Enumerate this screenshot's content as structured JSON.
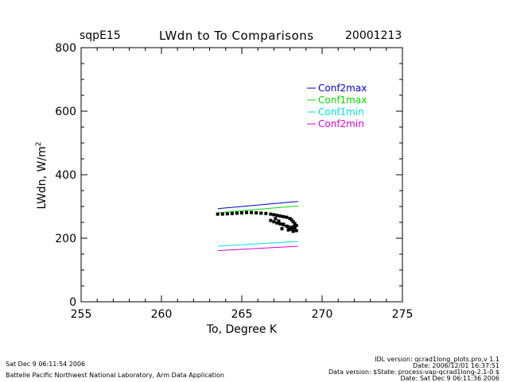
{
  "header": {
    "site": "sqpE15",
    "title": "LWdn to To Comparisons",
    "date": "20001213"
  },
  "footer": {
    "timestamp": "Sat Dec  9 06:11:54 2006",
    "lab": "Battelle Pacific Northwest National Laboratory, Arm Data Application",
    "idl_version": "IDL version: qcrad1long_plots.pro,v 1.1",
    "file_date": "Date: 2006/12/01 16:37:51",
    "data_version": "Data version: $State: process-vap-qcrad1long-2.1-0 $",
    "run_date": "Date: Sat Dec  9 06:11:36 2006"
  },
  "chart_data": {
    "type": "scatter",
    "title": "LWdn to To Comparisons",
    "xlabel": "To, Degree K",
    "ylabel": "LWdn, W/m",
    "ylabel_sup": "2",
    "xlim": [
      255,
      275
    ],
    "ylim": [
      0,
      800
    ],
    "xticks": [
      "255",
      "260",
      "265",
      "270",
      "275"
    ],
    "yticks": [
      "0",
      "200",
      "400",
      "600",
      "800"
    ],
    "legend_position": "top-right",
    "lines": [
      {
        "name": "Conf2max",
        "color": "#0000cc",
        "x": [
          263.5,
          268.5
        ],
        "y": [
          293,
          316
        ]
      },
      {
        "name": "Conf1max",
        "color": "#00dd00",
        "x": [
          263.5,
          268.5
        ],
        "y": [
          280,
          302
        ]
      },
      {
        "name": "Conf1min",
        "color": "#00dddd",
        "x": [
          263.5,
          268.5
        ],
        "y": [
          175,
          190
        ]
      },
      {
        "name": "Conf2min",
        "color": "#dd00dd",
        "x": [
          263.5,
          268.5
        ],
        "y": [
          161,
          175
        ]
      }
    ],
    "points": {
      "color": "#000000",
      "x": [
        263.5,
        263.8,
        264.1,
        264.4,
        264.7,
        265.0,
        265.3,
        265.6,
        265.9,
        266.2,
        266.5,
        266.8,
        267.0,
        267.2,
        267.4,
        267.6,
        267.8,
        268.0,
        268.1,
        268.2,
        268.3,
        268.4,
        268.2,
        268.0,
        267.8,
        267.6,
        267.4,
        267.2,
        267.0,
        266.8,
        267.5,
        267.9,
        268.1,
        268.3,
        268.4,
        268.2,
        267.9,
        267.6,
        267.3,
        267.1
      ],
      "y": [
        276,
        276,
        277,
        278,
        279,
        280,
        281,
        281,
        280,
        279,
        278,
        276,
        274,
        272,
        270,
        268,
        266,
        262,
        258,
        252,
        246,
        240,
        236,
        234,
        238,
        242,
        245,
        248,
        252,
        256,
        230,
        226,
        228,
        232,
        224,
        222,
        236,
        244,
        254,
        262
      ]
    }
  }
}
